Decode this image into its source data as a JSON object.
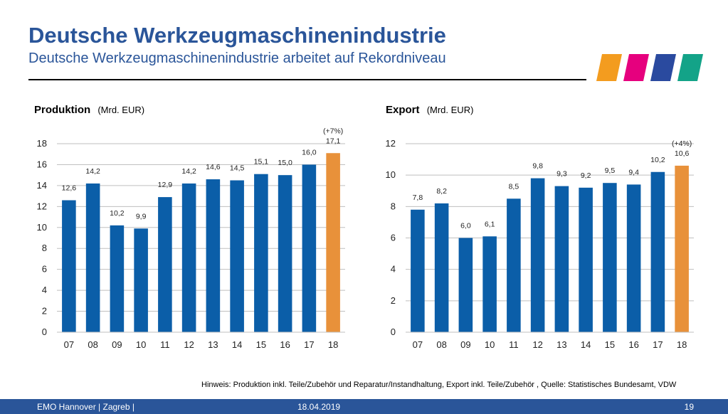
{
  "header": {
    "title": "Deutsche Werkzeugmaschinenindustrie",
    "subtitle": "Deutsche Werkzeugmaschinenindustrie arbeitet auf Rekordniveau"
  },
  "logo": {
    "colors": [
      "#f39c1f",
      "#e6007e",
      "#2a4a9f",
      "#13a388"
    ]
  },
  "colors": {
    "bar": "#0b5ea8",
    "highlight": "#e8913a",
    "grid": "#bfbfbf",
    "footer": "#2a5599"
  },
  "chart_data": [
    {
      "type": "bar",
      "title": "Produktion",
      "unit": "(Mrd. EUR)",
      "categories": [
        "07",
        "08",
        "09",
        "10",
        "11",
        "12",
        "13",
        "14",
        "15",
        "16",
        "17",
        "18"
      ],
      "values": [
        12.6,
        14.2,
        10.2,
        9.9,
        12.9,
        14.2,
        14.6,
        14.5,
        15.1,
        15.0,
        16.0,
        17.1
      ],
      "value_labels": [
        "12,6",
        "14,2",
        "10,2",
        "9,9",
        "12,9",
        "14,2",
        "14,6",
        "14,5",
        "15,1",
        "15,0",
        "16,0",
        "17,1"
      ],
      "highlight_index": 11,
      "annotation": "(+7%)",
      "yticks": [
        0,
        2,
        4,
        6,
        8,
        10,
        12,
        14,
        16,
        18
      ],
      "ylim": [
        0,
        18
      ],
      "grid": true
    },
    {
      "type": "bar",
      "title": "Export",
      "unit": "(Mrd. EUR)",
      "categories": [
        "07",
        "08",
        "09",
        "10",
        "11",
        "12",
        "13",
        "14",
        "15",
        "16",
        "17",
        "18"
      ],
      "values": [
        7.8,
        8.2,
        6.0,
        6.1,
        8.5,
        9.8,
        9.3,
        9.2,
        9.5,
        9.4,
        10.2,
        10.6
      ],
      "value_labels": [
        "7,8",
        "8,2",
        "6,0",
        "6,1",
        "8,5",
        "9,8",
        "9,3",
        "9,2",
        "9,5",
        "9,4",
        "10,2",
        "10,6"
      ],
      "highlight_index": 11,
      "annotation": "(+4%)",
      "yticks": [
        0,
        2,
        4,
        6,
        8,
        10,
        12
      ],
      "ylim": [
        0,
        12
      ],
      "grid": true
    }
  ],
  "note": "Hinweis: Produktion inkl. Teile/Zubehör und Reparatur/Instandhaltung, Export inkl. Teile/Zubehör , Quelle: Statistisches Bundesamt, VDW",
  "footer": {
    "left": "EMO Hannover | Zagreb |",
    "date": "18.04.2019",
    "page": "19"
  }
}
